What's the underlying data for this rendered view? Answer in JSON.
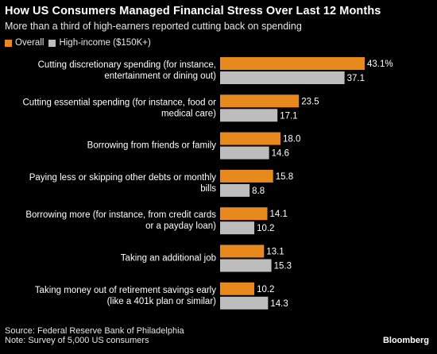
{
  "title": "How US Consumers Managed Financial Stress Over Last 12 Months",
  "subtitle": "More than a third of high-earners reported cutting back on spending",
  "legend": {
    "overall": "Overall",
    "high_income": "High-income ($150K+)"
  },
  "colors": {
    "overall": "#E8891E",
    "high_income": "#BDBDBD",
    "background": "#000000"
  },
  "chart_data": {
    "type": "bar",
    "orientation": "horizontal",
    "categories": [
      [
        "Cutting discretionary spending (for instance,",
        "entertainment or dining out)"
      ],
      [
        "Cutting essential spending (for instance, food or",
        "medical care)"
      ],
      [
        "Borrowing from friends or family"
      ],
      [
        "Paying less or skipping other debts or monthly",
        "bills"
      ],
      [
        "Borrowing more (for instance, from credit cards",
        "or a payday loan)"
      ],
      [
        "Taking an additional job"
      ],
      [
        "Taking money out of retirement savings early",
        "(like a 401k plan or similar)"
      ]
    ],
    "series": [
      {
        "name": "Overall",
        "values": [
          43.1,
          23.5,
          18.0,
          15.8,
          14.1,
          13.1,
          10.2
        ],
        "labels": [
          "43.1%",
          "23.5",
          "18.0",
          "15.8",
          "14.1",
          "13.1",
          "10.2"
        ]
      },
      {
        "name": "High-income ($150K+)",
        "values": [
          37.1,
          17.1,
          14.6,
          8.8,
          10.2,
          15.3,
          14.3
        ],
        "labels": [
          "37.1",
          "17.1",
          "14.6",
          "8.8",
          "10.2",
          "15.3",
          "14.3"
        ]
      }
    ],
    "xlim": [
      0,
      45
    ],
    "grid": false,
    "legend_position": "top-left"
  },
  "source": "Source: Federal Reserve Bank of Philadelphia",
  "note": "Note: Survey of 5,000 US consumers",
  "brand": "Bloomberg"
}
